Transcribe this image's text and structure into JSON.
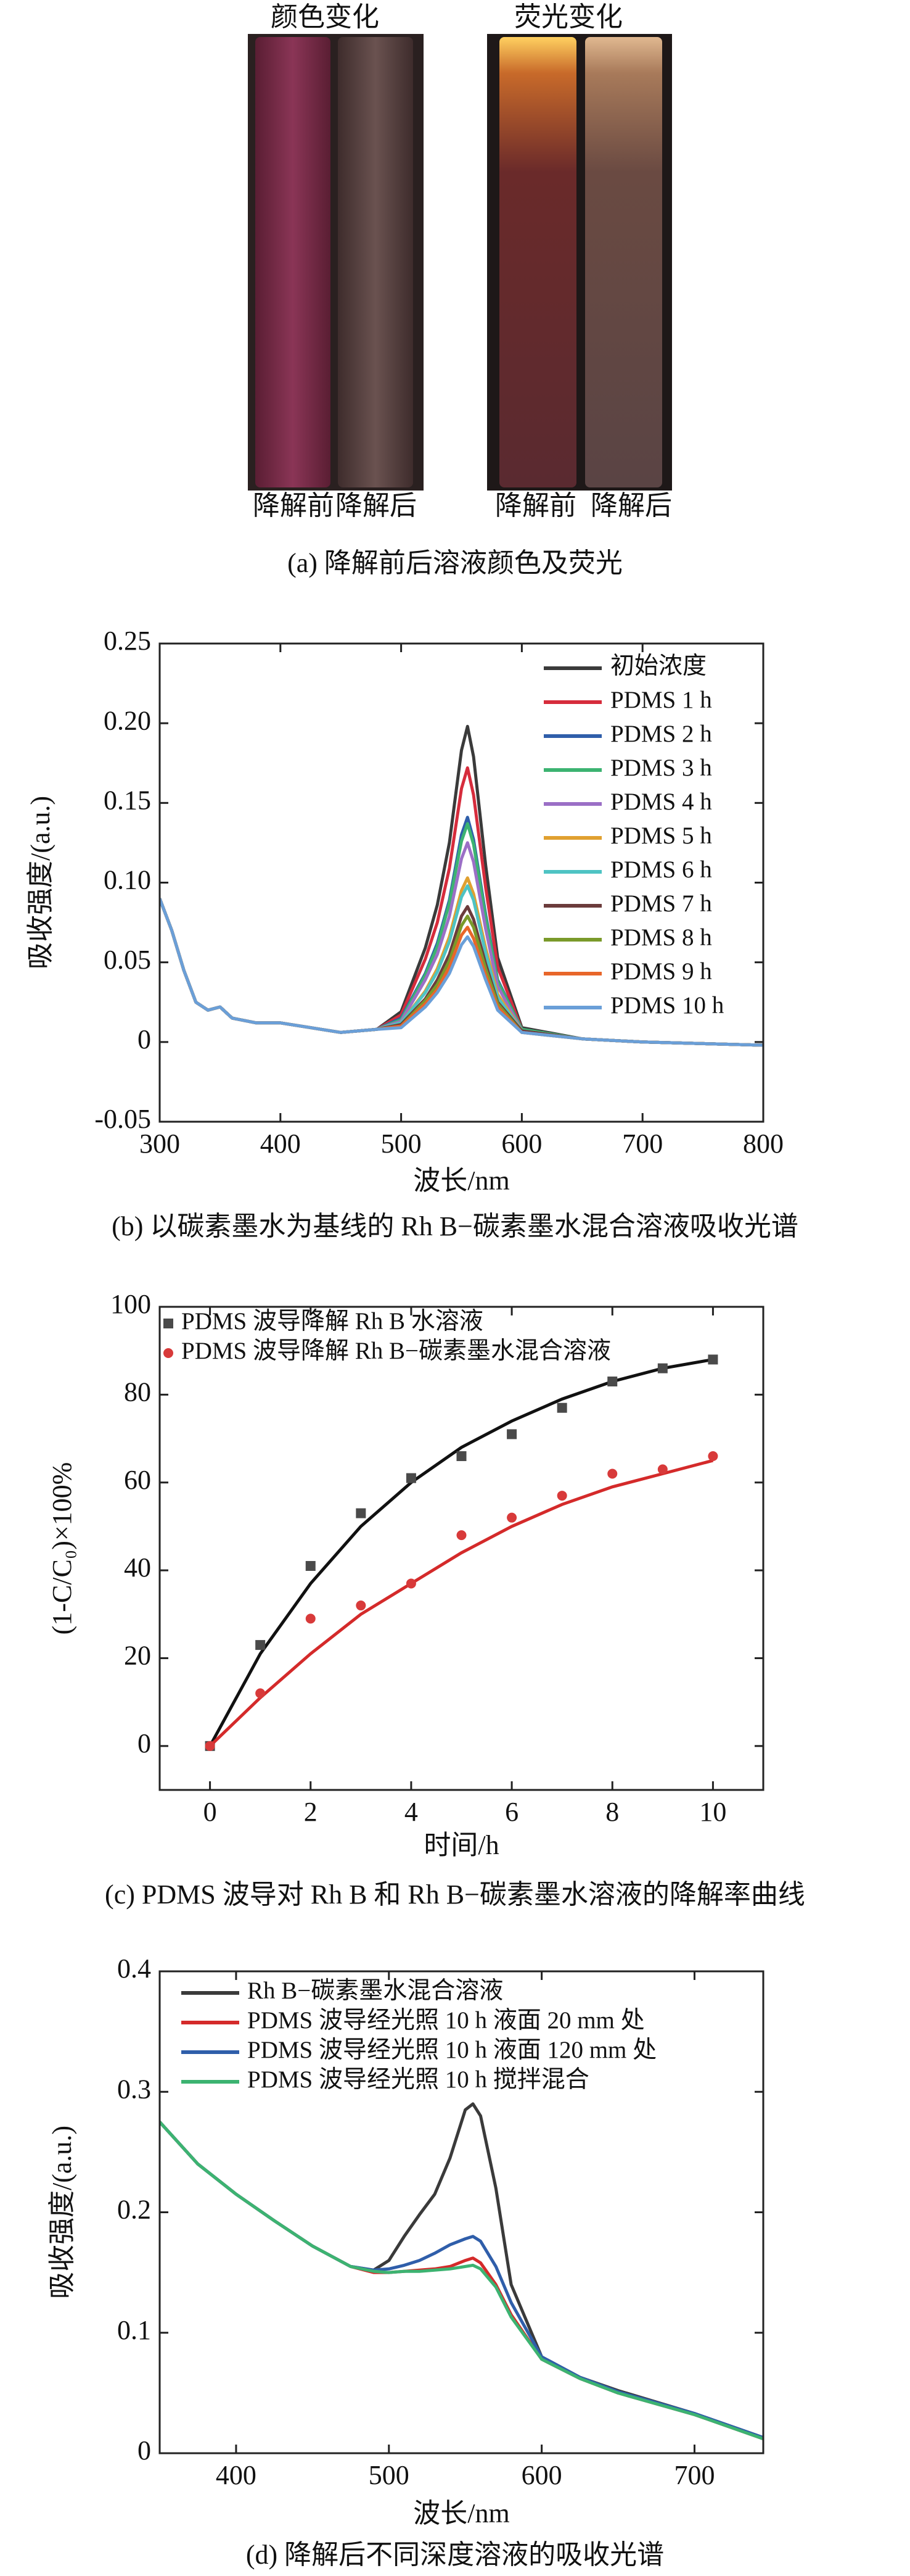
{
  "photo_panel": {
    "headers": [
      "颜色变化",
      "荧光变化"
    ],
    "tube_labels": [
      "降解前",
      "降解后",
      "降解前",
      "降解后"
    ],
    "caption": "(a) 降解前后溶液颜色及荧光"
  },
  "chart_data": [
    {
      "type": "line",
      "caption": "(b) 以碳素墨水为基线的 Rh B−碳素墨水混合溶液吸收光谱",
      "xlabel": "波长/nm",
      "ylabel": "吸收强度/(a.u.)",
      "x": [
        300,
        310,
        320,
        330,
        340,
        350,
        360,
        380,
        400,
        450,
        480,
        500,
        520,
        530,
        540,
        550,
        555,
        560,
        570,
        580,
        600,
        650,
        700,
        800
      ],
      "xlim": [
        300,
        800
      ],
      "ylim": [
        -0.05,
        0.25
      ],
      "xticks": [
        300,
        400,
        500,
        600,
        700,
        800
      ],
      "yticks": [
        -0.05,
        0,
        0.05,
        {
          "value": 0.1,
          "label": "0.10"
        },
        0.15,
        {
          "value": 0.2,
          "label": "0.20"
        },
        0.25
      ],
      "legend": "upper right",
      "series": [
        {
          "name": "初始浓度",
          "color": "#3a3a3a",
          "values": [
            0.09,
            0.07,
            0.045,
            0.025,
            0.02,
            0.022,
            0.015,
            0.012,
            0.012,
            0.006,
            0.008,
            0.019,
            0.059,
            0.086,
            0.125,
            0.183,
            0.198,
            0.179,
            0.111,
            0.053,
            0.009,
            0.002,
            0,
            -0.002
          ]
        },
        {
          "name": "PDMS 1 h",
          "color": "#d62c3c",
          "values": [
            0.09,
            0.07,
            0.045,
            0.025,
            0.02,
            0.022,
            0.015,
            0.012,
            0.012,
            0.006,
            0.008,
            0.017,
            0.052,
            0.075,
            0.109,
            0.159,
            0.172,
            0.155,
            0.097,
            0.047,
            0.008,
            0.002,
            0,
            -0.002
          ]
        },
        {
          "name": "PDMS 2 h",
          "color": "#2f5eaa",
          "values": [
            0.09,
            0.07,
            0.045,
            0.025,
            0.02,
            0.022,
            0.015,
            0.012,
            0.012,
            0.006,
            0.008,
            0.015,
            0.043,
            0.062,
            0.089,
            0.13,
            0.141,
            0.127,
            0.08,
            0.039,
            0.008,
            0.002,
            0,
            -0.002
          ]
        },
        {
          "name": "PDMS 3 h",
          "color": "#3cb371",
          "values": [
            0.09,
            0.07,
            0.045,
            0.025,
            0.02,
            0.022,
            0.015,
            0.012,
            0.012,
            0.006,
            0.008,
            0.014,
            0.042,
            0.06,
            0.087,
            0.126,
            0.137,
            0.124,
            0.078,
            0.038,
            0.008,
            0.002,
            0,
            -0.002
          ]
        },
        {
          "name": "PDMS 4 h",
          "color": "#9b6fc6",
          "values": [
            0.09,
            0.07,
            0.045,
            0.025,
            0.02,
            0.022,
            0.015,
            0.012,
            0.012,
            0.006,
            0.008,
            0.013,
            0.039,
            0.055,
            0.079,
            0.115,
            0.125,
            0.113,
            0.071,
            0.035,
            0.007,
            0.002,
            0,
            -0.002
          ]
        },
        {
          "name": "PDMS 5 h",
          "color": "#e0a030",
          "values": [
            0.09,
            0.07,
            0.045,
            0.025,
            0.02,
            0.022,
            0.015,
            0.012,
            0.012,
            0.006,
            0.008,
            0.012,
            0.032,
            0.046,
            0.066,
            0.095,
            0.103,
            0.093,
            0.059,
            0.03,
            0.007,
            0.002,
            0,
            -0.002
          ]
        },
        {
          "name": "PDMS 6 h",
          "color": "#4ec3c3",
          "values": [
            0.09,
            0.07,
            0.045,
            0.025,
            0.02,
            0.022,
            0.015,
            0.012,
            0.012,
            0.006,
            0.008,
            0.012,
            0.031,
            0.044,
            0.063,
            0.091,
            0.098,
            0.089,
            0.056,
            0.028,
            0.007,
            0.002,
            0,
            -0.002
          ]
        },
        {
          "name": "PDMS 7 h",
          "color": "#6b3c3c",
          "values": [
            0.09,
            0.07,
            0.045,
            0.025,
            0.02,
            0.022,
            0.015,
            0.012,
            0.012,
            0.006,
            0.008,
            0.011,
            0.027,
            0.039,
            0.055,
            0.079,
            0.085,
            0.077,
            0.049,
            0.025,
            0.007,
            0.002,
            0,
            -0.002
          ]
        },
        {
          "name": "PDMS 8 h",
          "color": "#7a9a2a",
          "values": [
            0.09,
            0.07,
            0.045,
            0.025,
            0.02,
            0.022,
            0.015,
            0.012,
            0.012,
            0.006,
            0.008,
            0.01,
            0.026,
            0.036,
            0.051,
            0.073,
            0.079,
            0.072,
            0.046,
            0.024,
            0.006,
            0.002,
            0,
            -0.002
          ]
        },
        {
          "name": "PDMS 9 h",
          "color": "#e8662a",
          "values": [
            0.09,
            0.07,
            0.045,
            0.025,
            0.02,
            0.022,
            0.015,
            0.012,
            0.012,
            0.006,
            0.008,
            0.01,
            0.024,
            0.033,
            0.047,
            0.067,
            0.072,
            0.065,
            0.042,
            0.022,
            0.006,
            0.002,
            0,
            -0.002
          ]
        },
        {
          "name": "PDMS 10 h",
          "color": "#6a9fd8",
          "values": [
            0.09,
            0.07,
            0.045,
            0.025,
            0.02,
            0.022,
            0.015,
            0.012,
            0.012,
            0.006,
            0.008,
            0.009,
            0.022,
            0.031,
            0.043,
            0.061,
            0.066,
            0.06,
            0.039,
            0.02,
            0.006,
            0.002,
            0,
            -0.002
          ]
        }
      ]
    },
    {
      "type": "scatter",
      "caption": "(c) PDMS 波导对 Rh B 和 Rh B−碳素墨水溶液的降解率曲线",
      "xlabel": "时间/h",
      "ylabel": "(1-C/C₀)×100%",
      "x": [
        0,
        1,
        2,
        3,
        4,
        5,
        6,
        7,
        8,
        9,
        10
      ],
      "xlim": [
        -1,
        11
      ],
      "ylim": [
        -10,
        100
      ],
      "xticks": [
        0,
        2,
        4,
        6,
        8,
        10
      ],
      "yticks": [
        0,
        20,
        40,
        60,
        80,
        100
      ],
      "legend": "upper left",
      "series": [
        {
          "name": "PDMS 波导降解 Rh B 水溶液",
          "color": "#4a4a4a",
          "line_color": "#111111",
          "marker": "square",
          "values": [
            0,
            23,
            41,
            53,
            61,
            66,
            71,
            77,
            83,
            86,
            88
          ],
          "fit": [
            0,
            21,
            37,
            50,
            60,
            68,
            74,
            79,
            83,
            86,
            88
          ]
        },
        {
          "name": "PDMS 波导降解 Rh B−碳素墨水混合溶液",
          "color": "#d83a3a",
          "line_color": "#d42a2a",
          "marker": "circle",
          "values": [
            0,
            12,
            29,
            32,
            37,
            48,
            52,
            57,
            62,
            63,
            66
          ],
          "fit": [
            0,
            11,
            21,
            30,
            37,
            44,
            50,
            55,
            59,
            62,
            65
          ]
        }
      ]
    },
    {
      "type": "line",
      "caption": "(d) 降解后不同深度溶液的吸收光谱",
      "xlabel": "波长/nm",
      "ylabel": "吸收强度/(a.u.)",
      "x": [
        350,
        375,
        400,
        425,
        450,
        475,
        490,
        500,
        510,
        520,
        530,
        540,
        550,
        555,
        560,
        570,
        580,
        600,
        625,
        650,
        700,
        745
      ],
      "xlim": [
        350,
        745
      ],
      "ylim": [
        0,
        0.4
      ],
      "xticks": [
        400,
        500,
        600,
        700
      ],
      "yticks": [
        0,
        0.1,
        0.2,
        0.3,
        0.4
      ],
      "legend": "upper left",
      "series": [
        {
          "name": "Rh B−碳素墨水混合溶液",
          "color": "#3a3a3a",
          "values": [
            0.275,
            0.24,
            0.215,
            0.193,
            0.172,
            0.155,
            0.152,
            0.16,
            0.18,
            0.198,
            0.215,
            0.245,
            0.285,
            0.29,
            0.28,
            0.22,
            0.14,
            0.08,
            0.063,
            0.052,
            0.033,
            0.013
          ]
        },
        {
          "name": "PDMS 波导经光照 10 h 液面 20 mm 处",
          "color": "#d42a2a",
          "values": [
            0.275,
            0.24,
            0.215,
            0.193,
            0.172,
            0.155,
            0.15,
            0.15,
            0.151,
            0.152,
            0.153,
            0.155,
            0.16,
            0.162,
            0.158,
            0.14,
            0.115,
            0.078,
            0.062,
            0.05,
            0.032,
            0.012
          ]
        },
        {
          "name": "PDMS 波导经光照 10 h 液面 120 mm 处",
          "color": "#2f5eaa",
          "values": [
            0.275,
            0.24,
            0.215,
            0.193,
            0.172,
            0.155,
            0.152,
            0.153,
            0.156,
            0.16,
            0.166,
            0.173,
            0.178,
            0.18,
            0.176,
            0.155,
            0.125,
            0.08,
            0.063,
            0.051,
            0.033,
            0.013
          ]
        },
        {
          "name": "PDMS 波导经光照 10 h 搅拌混合",
          "color": "#3cb371",
          "values": [
            0.275,
            0.24,
            0.215,
            0.193,
            0.172,
            0.155,
            0.151,
            0.15,
            0.151,
            0.151,
            0.152,
            0.153,
            0.155,
            0.156,
            0.153,
            0.138,
            0.113,
            0.078,
            0.062,
            0.05,
            0.032,
            0.012
          ]
        }
      ]
    }
  ]
}
